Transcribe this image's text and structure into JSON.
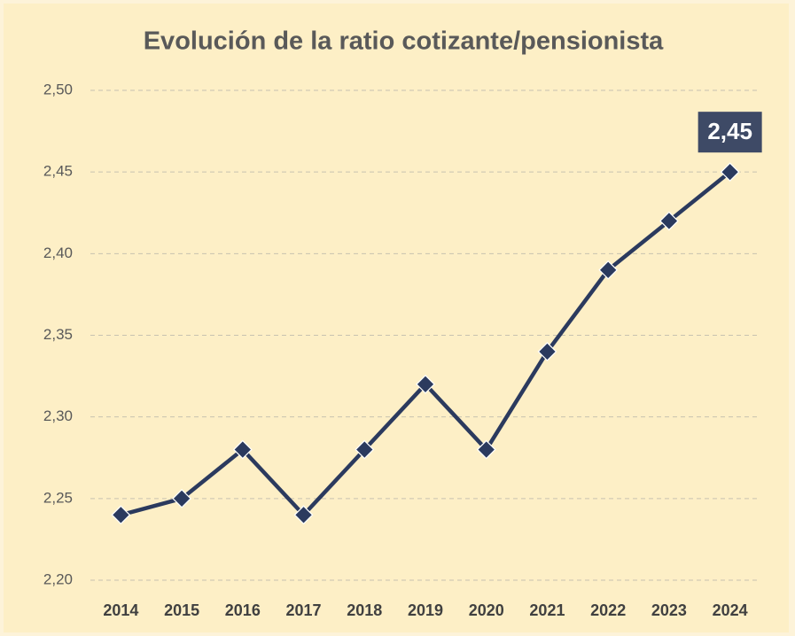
{
  "chart_data": {
    "type": "line",
    "title": "Evolución de la ratio cotizante/pensionista",
    "categories": [
      "2014",
      "2015",
      "2016",
      "2017",
      "2018",
      "2019",
      "2020",
      "2021",
      "2022",
      "2023",
      "2024"
    ],
    "series": [
      {
        "name": "Ratio cotizante/pensionista",
        "color": "#2b3a5e",
        "values": [
          2.24,
          2.25,
          2.28,
          2.24,
          2.28,
          2.32,
          2.28,
          2.34,
          2.39,
          2.42,
          2.45
        ],
        "value_labels": [
          null,
          null,
          null,
          null,
          null,
          null,
          null,
          null,
          null,
          null,
          "2,45"
        ]
      }
    ],
    "ylim": [
      2.2,
      2.5
    ],
    "yticks": [
      {
        "value": 2.2,
        "label": "2,20"
      },
      {
        "value": 2.25,
        "label": "2,25"
      },
      {
        "value": 2.3,
        "label": "2,30"
      },
      {
        "value": 2.35,
        "label": "2,35"
      },
      {
        "value": 2.4,
        "label": "2,40"
      },
      {
        "value": 2.45,
        "label": "2,45"
      },
      {
        "value": 2.5,
        "label": "2,50"
      }
    ],
    "grid": true
  }
}
